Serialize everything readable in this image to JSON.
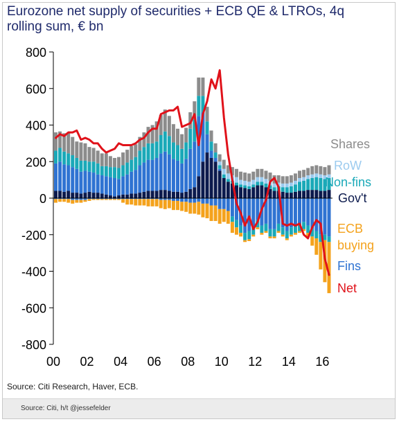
{
  "title": "Eurozone net supply of securities + ECB QE & LTROs, 4q rolling sum, € bn",
  "source": "Source: Citi Research, Haver, ECB.",
  "footer": "Source: Citi, h/t @jessefelder",
  "chart_data": {
    "type": "bar",
    "stacked": true,
    "ylim": [
      -800,
      800
    ],
    "yticks": [
      800,
      600,
      400,
      200,
      0,
      -200,
      -400,
      -600,
      -800
    ],
    "xlim": [
      2000,
      2016.6
    ],
    "xticks": [
      {
        "value": 2000,
        "label": "00"
      },
      {
        "value": 2002,
        "label": "02"
      },
      {
        "value": 2004,
        "label": "04"
      },
      {
        "value": 2006,
        "label": "06"
      },
      {
        "value": 2008,
        "label": "08"
      },
      {
        "value": 2010,
        "label": "10"
      },
      {
        "value": 2012,
        "label": "12"
      },
      {
        "value": 2014,
        "label": "14"
      },
      {
        "value": 2016,
        "label": "16"
      }
    ],
    "grid": false,
    "legend_position": "right",
    "legend": [
      {
        "name": "Shares",
        "color": "#8c8c8c"
      },
      {
        "name": "RoW",
        "color": "#9ccbef"
      },
      {
        "name": "Non-fins",
        "color": "#1aa9b8"
      },
      {
        "name": "Gov't",
        "color": "#0c1a4d"
      },
      {
        "name": "ECB buying",
        "color": "#f4a21c"
      },
      {
        "name": "Fins",
        "color": "#2f73d2"
      },
      {
        "name": "Net",
        "color": "#e0121a"
      }
    ],
    "series_colors": {
      "gov": "#0c1a4d",
      "fins": "#2f73d2",
      "nonfins": "#1aa9b8",
      "row": "#9ccbef",
      "shares": "#8c8c8c",
      "ecb": "#f4a21c",
      "net": "#e0121a"
    },
    "x": [
      2000.0,
      2000.25,
      2000.5,
      2000.75,
      2001.0,
      2001.25,
      2001.5,
      2001.75,
      2002.0,
      2002.25,
      2002.5,
      2002.75,
      2003.0,
      2003.25,
      2003.5,
      2003.75,
      2004.0,
      2004.25,
      2004.5,
      2004.75,
      2005.0,
      2005.25,
      2005.5,
      2005.75,
      2006.0,
      2006.25,
      2006.5,
      2006.75,
      2007.0,
      2007.25,
      2007.5,
      2007.75,
      2008.0,
      2008.25,
      2008.5,
      2008.75,
      2009.0,
      2009.25,
      2009.5,
      2009.75,
      2010.0,
      2010.25,
      2010.5,
      2010.75,
      2011.0,
      2011.25,
      2011.5,
      2011.75,
      2012.0,
      2012.25,
      2012.5,
      2012.75,
      2013.0,
      2013.25,
      2013.5,
      2013.75,
      2014.0,
      2014.25,
      2014.5,
      2014.75,
      2015.0,
      2015.25,
      2015.5,
      2015.75,
      2016.0,
      2016.25
    ],
    "positive_stack": [
      [
        40,
        40,
        35,
        40,
        30,
        30,
        25,
        30,
        35,
        30,
        30,
        25,
        20,
        15,
        10,
        15,
        20,
        20,
        25,
        25,
        30,
        35,
        40,
        40,
        40,
        45,
        45,
        40,
        35,
        35,
        30,
        35,
        50,
        60,
        120,
        200,
        250,
        220,
        200,
        150,
        110,
        90,
        80,
        70,
        60,
        55,
        50,
        60,
        70,
        70,
        60,
        50,
        40,
        40,
        35,
        30,
        30,
        35,
        40,
        40,
        45,
        45,
        45,
        40,
        40,
        45
      ],
      [
        150,
        160,
        150,
        140,
        140,
        130,
        120,
        120,
        110,
        110,
        100,
        100,
        100,
        100,
        100,
        90,
        100,
        110,
        120,
        130,
        150,
        160,
        170,
        170,
        180,
        200,
        210,
        200,
        180,
        170,
        160,
        180,
        220,
        250,
        330,
        270,
        100,
        40,
        20,
        10,
        0,
        0,
        0,
        0,
        0,
        0,
        0,
        0,
        0,
        0,
        0,
        0,
        0,
        0,
        0,
        0,
        0,
        0,
        0,
        0,
        0,
        0,
        0,
        0,
        0,
        0
      ],
      [
        70,
        75,
        70,
        65,
        65,
        60,
        60,
        55,
        55,
        60,
        60,
        50,
        55,
        55,
        60,
        60,
        60,
        65,
        65,
        70,
        80,
        85,
        90,
        90,
        90,
        100,
        110,
        100,
        90,
        85,
        80,
        90,
        110,
        120,
        110,
        90,
        70,
        50,
        30,
        20,
        20,
        15,
        15,
        15,
        15,
        15,
        15,
        15,
        20,
        20,
        20,
        20,
        20,
        25,
        25,
        30,
        35,
        40,
        50,
        55,
        60,
        65,
        70,
        70,
        65,
        65
      ],
      [
        0,
        0,
        0,
        0,
        0,
        0,
        0,
        0,
        0,
        0,
        0,
        0,
        0,
        0,
        0,
        0,
        0,
        0,
        0,
        0,
        0,
        0,
        0,
        0,
        0,
        0,
        0,
        0,
        0,
        0,
        0,
        0,
        0,
        0,
        0,
        0,
        0,
        0,
        0,
        20,
        30,
        30,
        30,
        30,
        25,
        25,
        25,
        25,
        25,
        25,
        25,
        25,
        20,
        20,
        20,
        20,
        20,
        20,
        20,
        20,
        20,
        20,
        20,
        20,
        20,
        20
      ],
      [
        100,
        90,
        100,
        110,
        100,
        90,
        100,
        95,
        80,
        75,
        70,
        70,
        70,
        60,
        50,
        60,
        70,
        70,
        75,
        70,
        75,
        80,
        90,
        100,
        110,
        110,
        120,
        110,
        100,
        90,
        80,
        80,
        90,
        100,
        100,
        100,
        80,
        60,
        50,
        40,
        50,
        45,
        45,
        45,
        45,
        45,
        45,
        45,
        45,
        45,
        45,
        45,
        45,
        40,
        40,
        40,
        40,
        40,
        40,
        40,
        40,
        45,
        45,
        45,
        45,
        50
      ]
    ],
    "positive_series": [
      "gov",
      "fins",
      "nonfins",
      "row",
      "shares"
    ],
    "negative_stack": [
      [
        -5,
        -5,
        -5,
        -5,
        -10,
        -10,
        -10,
        -10,
        -5,
        -5,
        -5,
        -5,
        -5,
        -5,
        -5,
        -5,
        -5,
        -5,
        -5,
        -5,
        -5,
        -5,
        -5,
        -5,
        -5,
        -10,
        -10,
        -10,
        -15,
        -15,
        -20,
        -20,
        -25,
        -25,
        -20,
        -30,
        -30,
        -40,
        -40,
        -60,
        -60,
        -70,
        -100,
        -120,
        -150,
        -190,
        -180,
        -160,
        -120,
        -150,
        -140,
        -170,
        -170,
        -140,
        -160,
        -180,
        -160,
        -150,
        -140,
        -130,
        -150,
        -170,
        -180,
        -200,
        -200,
        -210
      ],
      [
        0,
        0,
        0,
        0,
        0,
        0,
        0,
        0,
        0,
        0,
        0,
        0,
        0,
        0,
        0,
        0,
        0,
        0,
        0,
        0,
        0,
        0,
        0,
        0,
        0,
        0,
        0,
        0,
        0,
        0,
        0,
        0,
        0,
        0,
        0,
        0,
        0,
        0,
        0,
        0,
        0,
        0,
        -30,
        -40,
        -40,
        -40,
        -45,
        -40,
        -40,
        -40,
        -40,
        -40,
        -40,
        -40,
        -40,
        -40,
        -40,
        -40,
        -40,
        -40,
        -40,
        -40,
        -40,
        -40,
        -30,
        -30
      ],
      [
        -20,
        -15,
        -15,
        -20,
        -20,
        -15,
        -15,
        -10,
        -10,
        -5,
        -5,
        -5,
        -5,
        -5,
        -5,
        -5,
        -20,
        -30,
        -30,
        -35,
        -35,
        -35,
        -40,
        -40,
        -40,
        -45,
        -50,
        -45,
        -50,
        -50,
        -50,
        -55,
        -60,
        -60,
        -70,
        -75,
        -80,
        -85,
        -85,
        -80,
        -70,
        -70,
        -60,
        -40,
        -20,
        -10,
        -10,
        -10,
        -10,
        -10,
        -10,
        -10,
        -10,
        -10,
        -10,
        -10,
        -10,
        -10,
        -10,
        -10,
        -20,
        -50,
        -90,
        -150,
        -230,
        -280
      ]
    ],
    "negative_series": [
      "fins",
      "nonfins",
      "ecb"
    ],
    "net": [
      330,
      350,
      340,
      360,
      360,
      370,
      320,
      330,
      320,
      300,
      300,
      270,
      250,
      260,
      270,
      300,
      290,
      290,
      290,
      300,
      320,
      330,
      360,
      380,
      380,
      460,
      470,
      480,
      480,
      500,
      390,
      400,
      410,
      460,
      290,
      460,
      530,
      650,
      600,
      700,
      440,
      240,
      100,
      -30,
      -80,
      -150,
      -100,
      -170,
      -130,
      -60,
      -10,
      90,
      110,
      60,
      -140,
      -150,
      -140,
      -150,
      -140,
      -200,
      -220,
      -160,
      -120,
      -140,
      -330,
      -420
    ]
  }
}
